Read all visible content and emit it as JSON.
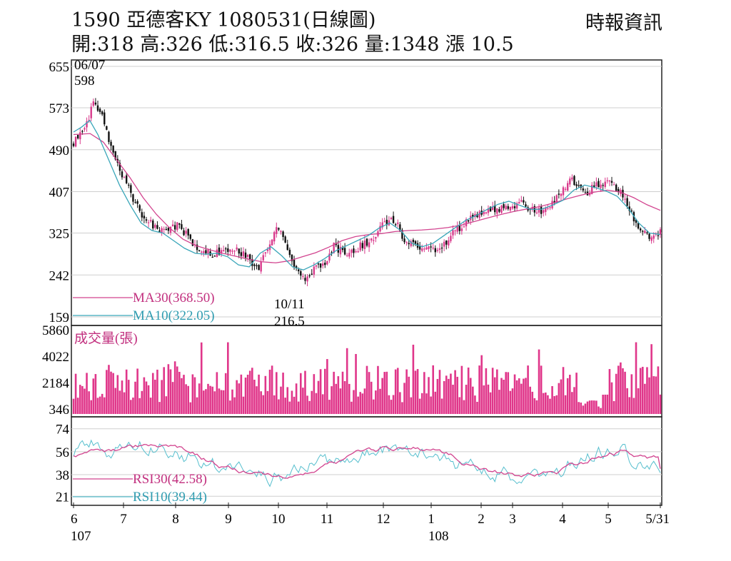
{
  "header": {
    "title": "1590  亞德客KY 1080531(日線圖)",
    "source": "時報資訊",
    "ohlc": "開:318 高:326 低:316.5 收:326 量:1348 漲 10.5"
  },
  "colors": {
    "candle_up": "#d93a8c",
    "candle_down": "#111111",
    "ma30": "#d2448f",
    "ma10": "#3aa6b9",
    "volume": "#e0368a",
    "rsi30": "#d2448f",
    "rsi10": "#57bfce",
    "grid": "#cfcfcf"
  },
  "chart_data": [
    {
      "type": "candlestick",
      "panel": "price",
      "ylim": [
        159,
        655
      ],
      "yticks": [
        "655",
        "573",
        "490",
        "407",
        "325",
        "242",
        "159"
      ],
      "grid": true,
      "annotations": [
        {
          "date": "06/07",
          "value": "598"
        },
        {
          "date": "10/11",
          "value": "216.5"
        }
      ],
      "series": [
        {
          "name": "MA30",
          "label": "MA30(368.50)",
          "value": 368.5,
          "path": [
            [
              0,
              520
            ],
            [
              0.05,
              522
            ],
            [
              0.09,
              505
            ],
            [
              0.13,
              470
            ],
            [
              0.17,
              435
            ],
            [
              0.21,
              395
            ],
            [
              0.25,
              362
            ],
            [
              0.29,
              335
            ],
            [
              0.33,
              313
            ],
            [
              0.37,
              300
            ],
            [
              0.41,
              292
            ],
            [
              0.45,
              285
            ],
            [
              0.49,
              279
            ],
            [
              0.53,
              273
            ],
            [
              0.57,
              268
            ],
            [
              0.61,
              266
            ],
            [
              0.65,
              270
            ],
            [
              0.69,
              278
            ],
            [
              0.73,
              286
            ],
            [
              0.77,
              297
            ],
            [
              0.81,
              310
            ],
            [
              0.85,
              318
            ],
            [
              0.89,
              322
            ],
            [
              0.93,
              324
            ],
            [
              0.97,
              328
            ],
            [
              1.01,
              330
            ],
            [
              1.05,
              331
            ],
            [
              1.09,
              333
            ],
            [
              1.13,
              336
            ],
            [
              1.17,
              341
            ],
            [
              1.21,
              348
            ],
            [
              1.25,
              355
            ],
            [
              1.29,
              362
            ],
            [
              1.33,
              368
            ],
            [
              1.37,
              373
            ],
            [
              1.41,
              378
            ],
            [
              1.45,
              385
            ],
            [
              1.49,
              393
            ],
            [
              1.53,
              400
            ],
            [
              1.57,
              406
            ],
            [
              1.61,
              410
            ],
            [
              1.65,
              406
            ],
            [
              1.69,
              395
            ],
            [
              1.73,
              381
            ],
            [
              1.77,
              370
            ]
          ]
        },
        {
          "name": "MA10",
          "label": "MA10(322.05)",
          "value": 322.05,
          "path": [
            [
              0,
              525
            ],
            [
              0.03,
              535
            ],
            [
              0.06,
              548
            ],
            [
              0.09,
              520
            ],
            [
              0.13,
              470
            ],
            [
              0.17,
              420
            ],
            [
              0.21,
              380
            ],
            [
              0.25,
              345
            ],
            [
              0.29,
              330
            ],
            [
              0.33,
              325
            ],
            [
              0.37,
              310
            ],
            [
              0.41,
              295
            ],
            [
              0.45,
              285
            ],
            [
              0.49,
              283
            ],
            [
              0.53,
              285
            ],
            [
              0.57,
              278
            ],
            [
              0.61,
              262
            ],
            [
              0.65,
              258
            ],
            [
              0.69,
              285
            ],
            [
              0.73,
              298
            ],
            [
              0.77,
              280
            ],
            [
              0.81,
              258
            ],
            [
              0.85,
              252
            ],
            [
              0.89,
              262
            ],
            [
              0.93,
              275
            ],
            [
              0.97,
              290
            ],
            [
              1.01,
              300
            ],
            [
              1.05,
              310
            ],
            [
              1.09,
              320
            ],
            [
              1.13,
              335
            ],
            [
              1.17,
              345
            ],
            [
              1.21,
              330
            ],
            [
              1.25,
              305
            ],
            [
              1.29,
              298
            ],
            [
              1.33,
              305
            ],
            [
              1.37,
              320
            ],
            [
              1.41,
              335
            ],
            [
              1.45,
              350
            ],
            [
              1.49,
              360
            ],
            [
              1.53,
              372
            ],
            [
              1.57,
              382
            ],
            [
              1.61,
              388
            ],
            [
              1.65,
              380
            ],
            [
              1.69,
              372
            ],
            [
              1.73,
              372
            ],
            [
              1.77,
              380
            ],
            [
              1.81,
              390
            ],
            [
              1.85,
              410
            ],
            [
              1.89,
              420
            ],
            [
              1.93,
              415
            ],
            [
              1.97,
              408
            ],
            [
              2.01,
              398
            ],
            [
              2.05,
              375
            ],
            [
              2.09,
              345
            ],
            [
              2.13,
              325
            ],
            [
              2.17,
              322
            ]
          ]
        }
      ]
    },
    {
      "type": "bar",
      "panel": "volume",
      "title": "成交量(張)",
      "ylim": [
        0,
        5860
      ],
      "yticks": [
        "5860",
        "4022",
        "2184",
        "346"
      ],
      "last_value": 1348
    },
    {
      "type": "line",
      "panel": "rsi",
      "ylim": [
        15,
        80
      ],
      "yticks": [
        "74",
        "56",
        "38",
        "21"
      ],
      "series": [
        {
          "name": "RSI30",
          "label": "RSI30(42.58)",
          "value": 42.58
        },
        {
          "name": "RSI10",
          "label": "RSI10(39.44)",
          "value": 39.44
        }
      ],
      "xticks": [
        {
          "label": "6",
          "sub": "107"
        },
        {
          "label": "7"
        },
        {
          "label": "8"
        },
        {
          "label": "9"
        },
        {
          "label": "10"
        },
        {
          "label": "11"
        },
        {
          "label": "12"
        },
        {
          "label": "1",
          "sub": "108"
        },
        {
          "label": "2"
        },
        {
          "label": "3"
        },
        {
          "label": "4"
        },
        {
          "label": "5"
        },
        {
          "label": "5/31"
        }
      ]
    }
  ]
}
